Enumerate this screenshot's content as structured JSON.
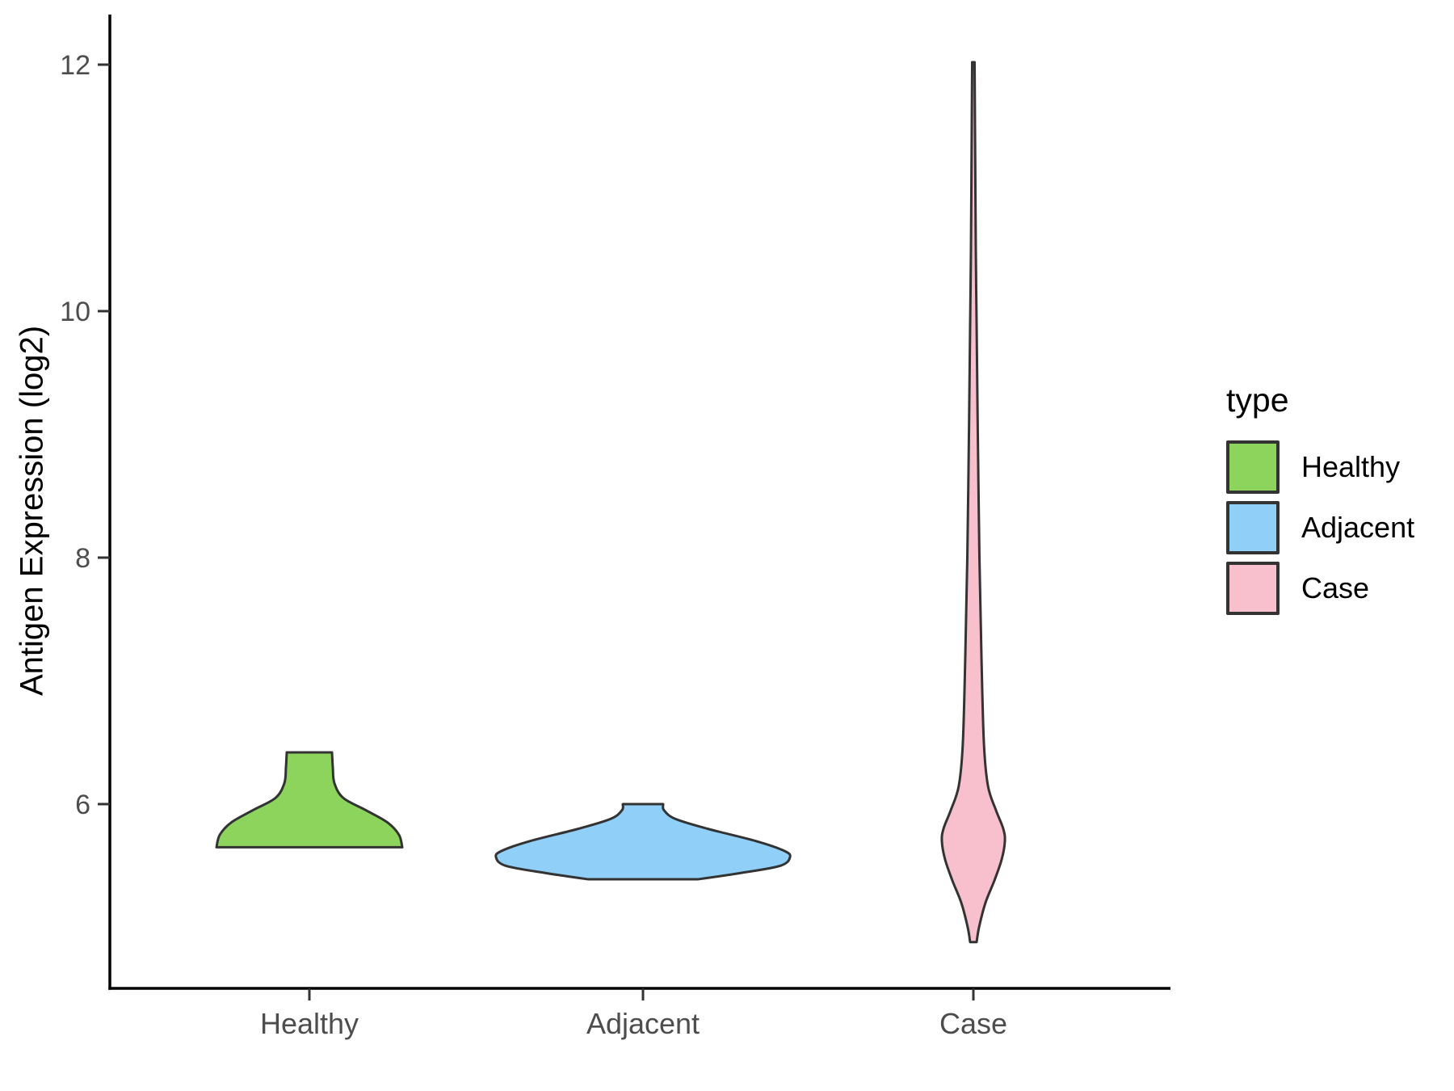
{
  "figure": {
    "background": "#FFFFFF"
  },
  "chart_data": {
    "type": "violin",
    "title": "",
    "xlabel": "",
    "ylabel": "Antigen Expression (log2)",
    "categories": [
      "Healthy",
      "Adjacent",
      "Case"
    ],
    "y_ticks": [
      6,
      8,
      10,
      12
    ],
    "ylim": [
      4.5,
      12.4
    ],
    "grid": false,
    "legend": {
      "title": "type",
      "position": "right",
      "entries": [
        {
          "label": "Healthy",
          "color": "#8CD45C"
        },
        {
          "label": "Adjacent",
          "color": "#90CFF8"
        },
        {
          "label": "Case",
          "color": "#F8BFCC"
        }
      ]
    },
    "series": [
      {
        "name": "Healthy",
        "color": "#8CD45C",
        "min": 5.65,
        "max": 6.42,
        "profile": [
          [
            6.42,
            28
          ],
          [
            6.3,
            29
          ],
          [
            6.17,
            31
          ],
          [
            6.05,
            42
          ],
          [
            5.95,
            70
          ],
          [
            5.85,
            97
          ],
          [
            5.75,
            111
          ],
          [
            5.65,
            115
          ]
        ]
      },
      {
        "name": "Adjacent",
        "color": "#90CFF8",
        "min": 5.39,
        "max": 6.0,
        "profile": [
          [
            6.0,
            25
          ],
          [
            5.95,
            26
          ],
          [
            5.88,
            40
          ],
          [
            5.8,
            80
          ],
          [
            5.7,
            140
          ],
          [
            5.62,
            175
          ],
          [
            5.57,
            182
          ],
          [
            5.5,
            170
          ],
          [
            5.44,
            120
          ],
          [
            5.39,
            68
          ]
        ]
      },
      {
        "name": "Case",
        "color": "#F8BFCC",
        "min": 4.88,
        "max": 12.02,
        "profile": [
          [
            12.02,
            1.5
          ],
          [
            11.5,
            2
          ],
          [
            10.5,
            3
          ],
          [
            9.9,
            4
          ],
          [
            9.0,
            5.5
          ],
          [
            8.0,
            7.5
          ],
          [
            7.2,
            10
          ],
          [
            6.5,
            13
          ],
          [
            6.15,
            18
          ],
          [
            5.95,
            28
          ],
          [
            5.8,
            37
          ],
          [
            5.7,
            39
          ],
          [
            5.55,
            35
          ],
          [
            5.38,
            26
          ],
          [
            5.2,
            15
          ],
          [
            5.0,
            7
          ],
          [
            4.88,
            4
          ]
        ]
      }
    ],
    "style": {
      "outline": "#333333",
      "axis_color": "#000000",
      "tick_color": "#333333",
      "tick_label_color": "#4D4D4D"
    }
  }
}
